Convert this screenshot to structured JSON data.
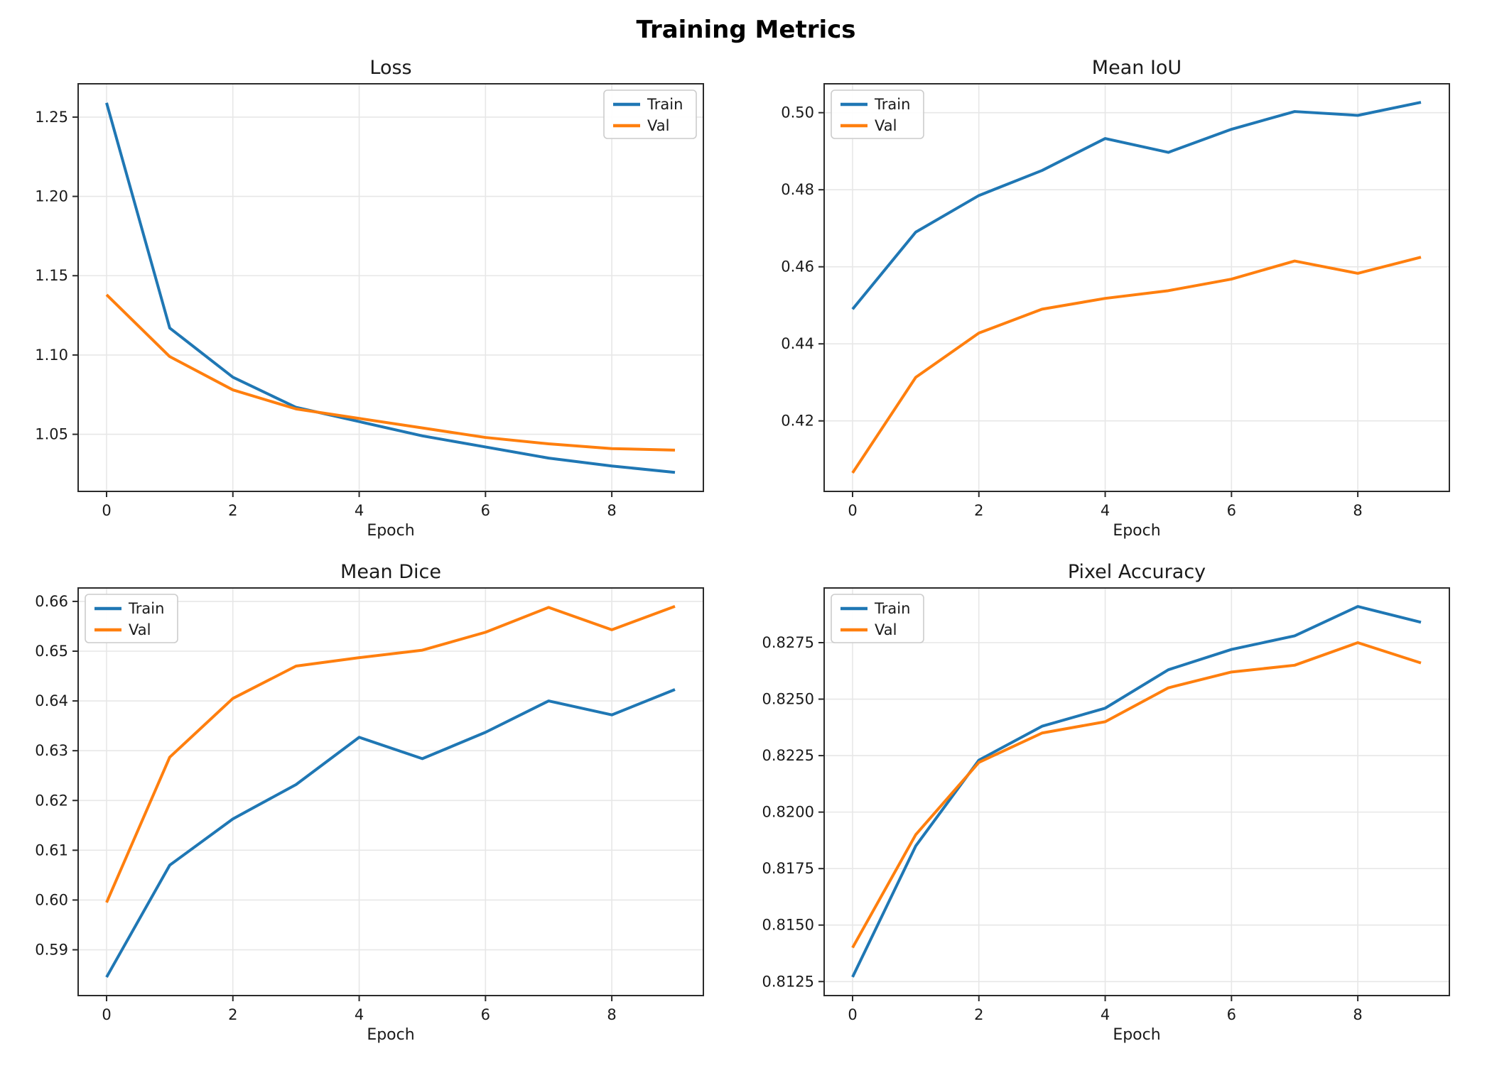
{
  "figure_title": "Training Metrics",
  "xlabel": "Epoch",
  "legend_labels": {
    "train": "Train",
    "val": "Val"
  },
  "colors": {
    "train": "#1f77b4",
    "val": "#ff7f0e",
    "grid": "#e7e7e7",
    "spine": "#2b2b2b",
    "text": "#1a1a1a",
    "legend_border": "#cccccc",
    "background": "#ffffff"
  },
  "chart_data": [
    {
      "id": "loss",
      "type": "line",
      "title": "Loss",
      "xlabel": "Epoch",
      "x": [
        0,
        1,
        2,
        3,
        4,
        5,
        6,
        7,
        8,
        9
      ],
      "series": [
        {
          "name": "Train",
          "color_key": "train",
          "values": [
            1.259,
            1.117,
            1.086,
            1.067,
            1.058,
            1.049,
            1.042,
            1.035,
            1.03,
            1.026
          ]
        },
        {
          "name": "Val",
          "color_key": "val",
          "values": [
            1.138,
            1.099,
            1.078,
            1.066,
            1.06,
            1.054,
            1.048,
            1.044,
            1.041,
            1.04
          ]
        }
      ],
      "xlim": [
        -0.45,
        9.45
      ],
      "ylim": [
        1.014,
        1.271
      ],
      "xticks": [
        0,
        2,
        4,
        6,
        8
      ],
      "xtick_labels": [
        "0",
        "2",
        "4",
        "6",
        "8"
      ],
      "ytick_values": [
        1.05,
        1.1,
        1.15,
        1.2,
        1.25
      ],
      "ytick_labels": [
        "1.05",
        "1.10",
        "1.15",
        "1.20",
        "1.25"
      ],
      "legend_position": "top-right",
      "grid": true
    },
    {
      "id": "mean-iou",
      "type": "line",
      "title": "Mean IoU",
      "xlabel": "Epoch",
      "x": [
        0,
        1,
        2,
        3,
        4,
        5,
        6,
        7,
        8,
        9
      ],
      "series": [
        {
          "name": "Train",
          "color_key": "train",
          "values": [
            0.449,
            0.469,
            0.4785,
            0.485,
            0.4933,
            0.4897,
            0.4957,
            0.5003,
            0.4993,
            0.5027
          ]
        },
        {
          "name": "Val",
          "color_key": "val",
          "values": [
            0.4065,
            0.4313,
            0.4428,
            0.449,
            0.4518,
            0.4538,
            0.4568,
            0.4615,
            0.4583,
            0.4625
          ]
        }
      ],
      "xlim": [
        -0.45,
        9.45
      ],
      "ylim": [
        0.4017,
        0.5075
      ],
      "xticks": [
        0,
        2,
        4,
        6,
        8
      ],
      "xtick_labels": [
        "0",
        "2",
        "4",
        "6",
        "8"
      ],
      "ytick_values": [
        0.42,
        0.44,
        0.46,
        0.48,
        0.5
      ],
      "ytick_labels": [
        "0.42",
        "0.44",
        "0.46",
        "0.48",
        "0.50"
      ],
      "legend_position": "top-left",
      "grid": true
    },
    {
      "id": "mean-dice",
      "type": "line",
      "title": "Mean Dice",
      "xlabel": "Epoch",
      "x": [
        0,
        1,
        2,
        3,
        4,
        5,
        6,
        7,
        8,
        9
      ],
      "series": [
        {
          "name": "Train",
          "color_key": "train",
          "values": [
            0.5845,
            0.607,
            0.6163,
            0.6232,
            0.6327,
            0.6284,
            0.6337,
            0.64,
            0.6372,
            0.6423
          ]
        },
        {
          "name": "Val",
          "color_key": "val",
          "values": [
            0.5995,
            0.6287,
            0.6405,
            0.647,
            0.6487,
            0.6502,
            0.6538,
            0.6588,
            0.6543,
            0.659
          ]
        }
      ],
      "xlim": [
        -0.45,
        9.45
      ],
      "ylim": [
        0.5808,
        0.6627
      ],
      "xticks": [
        0,
        2,
        4,
        6,
        8
      ],
      "xtick_labels": [
        "0",
        "2",
        "4",
        "6",
        "8"
      ],
      "ytick_values": [
        0.59,
        0.6,
        0.61,
        0.62,
        0.63,
        0.64,
        0.65,
        0.66
      ],
      "ytick_labels": [
        "0.59",
        "0.60",
        "0.61",
        "0.62",
        "0.63",
        "0.64",
        "0.65",
        "0.66"
      ],
      "legend_position": "top-left",
      "grid": true
    },
    {
      "id": "pixel-accuracy",
      "type": "line",
      "title": "Pixel Accuracy",
      "xlabel": "Epoch",
      "x": [
        0,
        1,
        2,
        3,
        4,
        5,
        6,
        7,
        8,
        9
      ],
      "series": [
        {
          "name": "Train",
          "color_key": "train",
          "values": [
            0.8127,
            0.8185,
            0.8223,
            0.8238,
            0.8246,
            0.8263,
            0.8272,
            0.8278,
            0.8291,
            0.8284
          ]
        },
        {
          "name": "Val",
          "color_key": "val",
          "values": [
            0.814,
            0.819,
            0.8222,
            0.8235,
            0.824,
            0.8255,
            0.8262,
            0.8265,
            0.8275,
            0.8266
          ]
        }
      ],
      "xlim": [
        -0.45,
        9.45
      ],
      "ylim": [
        0.81188,
        0.82992
      ],
      "xticks": [
        0,
        2,
        4,
        6,
        8
      ],
      "xtick_labels": [
        "0",
        "2",
        "4",
        "6",
        "8"
      ],
      "ytick_values": [
        0.8125,
        0.815,
        0.8175,
        0.82,
        0.8225,
        0.825,
        0.8275
      ],
      "ytick_labels": [
        "0.8125",
        "0.8150",
        "0.8175",
        "0.8200",
        "0.8225",
        "0.8250",
        "0.8275"
      ],
      "legend_position": "top-left",
      "grid": true
    }
  ]
}
